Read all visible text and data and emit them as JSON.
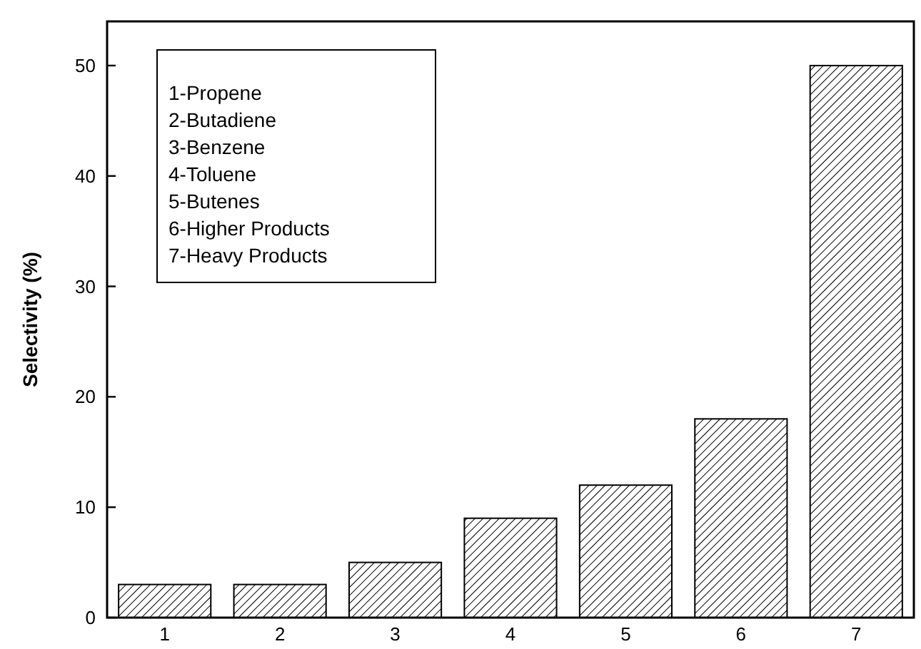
{
  "chart_data": {
    "type": "bar",
    "ylabel": "Selectivity (%)",
    "categories": [
      "1",
      "2",
      "3",
      "4",
      "5",
      "6",
      "7"
    ],
    "values": [
      3,
      3,
      5,
      9,
      12,
      18,
      50
    ],
    "color": "#000000",
    "ylim": [
      0,
      54
    ],
    "yticks": [
      0,
      10,
      20,
      30,
      40,
      50
    ],
    "grid": false,
    "annotations": [
      "1-Propene",
      "2-Butadiene",
      "3-Benzene",
      "4-Toluene",
      "5-Butenes",
      "6-Higher Products",
      "7-Heavy Products"
    ]
  }
}
